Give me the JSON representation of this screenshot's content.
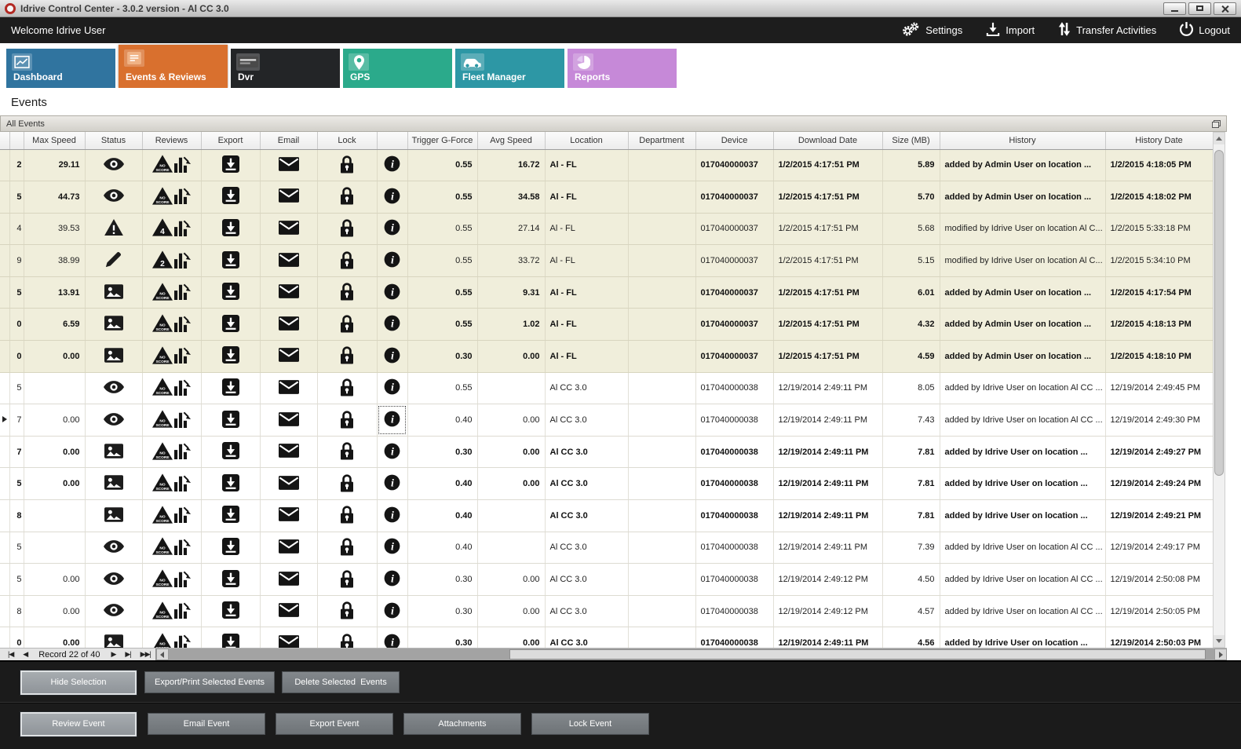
{
  "window": {
    "title": "Idrive Control Center - 3.0.2 version - Al CC 3.0"
  },
  "topbar": {
    "welcome": "Welcome Idrive User",
    "actions": [
      {
        "id": "settings",
        "label": "Settings",
        "icon": "gears-icon"
      },
      {
        "id": "import",
        "label": "Import",
        "icon": "import-icon"
      },
      {
        "id": "transfer-activities",
        "label": "Transfer Activities",
        "icon": "transfer-arrows-icon"
      },
      {
        "id": "logout",
        "label": "Logout",
        "icon": "power-icon"
      }
    ]
  },
  "tabs": [
    {
      "id": "dashboard",
      "label": "Dashboard",
      "color": "#30749f",
      "icon": "line-chart-icon",
      "active": false
    },
    {
      "id": "events-reviews",
      "label": "Events & Reviews",
      "color": "#d9702e",
      "icon": "event-list-icon",
      "active": true
    },
    {
      "id": "dvr",
      "label": "Dvr",
      "color": "#232527",
      "icon": "dvr-badge-icon",
      "active": false
    },
    {
      "id": "gps",
      "label": "GPS",
      "color": "#2baa8b",
      "icon": "map-pin-icon",
      "active": false
    },
    {
      "id": "fleet-manager",
      "label": "Fleet Manager",
      "color": "#2d97a5",
      "icon": "car-icon",
      "active": false
    },
    {
      "id": "reports",
      "label": "Reports",
      "color": "#c689d8",
      "icon": "pie-chart-icon",
      "active": false
    }
  ],
  "page": {
    "title": "Events",
    "panel_title": "All Events"
  },
  "colors": {
    "row_highlight": "#f0eedb",
    "topbar_bg": "#1d1d1d",
    "footer_bg": "#1b1b1b",
    "active_tab": "#d9702e"
  },
  "table": {
    "columns": [
      "",
      "",
      "Max Speed",
      "Status",
      "Reviews",
      "Export",
      "Email",
      "Lock",
      "",
      "Trigger G-Force",
      "Avg Speed",
      "Location",
      "Department",
      "Device",
      "Download Date",
      "Size (MB)",
      "History",
      "History Date"
    ],
    "rows": [
      {
        "id": "2",
        "max_speed": "29.11",
        "status": "eye",
        "score": "NO SCORE",
        "trigger_g_force": "0.55",
        "avg_speed": "16.72",
        "location": "Al - FL",
        "department": "",
        "device": "017040000037",
        "download_date": "1/2/2015 4:17:51 PM",
        "size_mb": "5.89",
        "history": "added by Admin User on location ...",
        "history_date": "1/2/2015 4:18:05 PM",
        "bold": true,
        "highlighted": true,
        "current": false
      },
      {
        "id": "5",
        "max_speed": "44.73",
        "status": "eye",
        "score": "NO SCORE",
        "trigger_g_force": "0.55",
        "avg_speed": "34.58",
        "location": "Al - FL",
        "department": "",
        "device": "017040000037",
        "download_date": "1/2/2015 4:17:51 PM",
        "size_mb": "5.70",
        "history": "added by Admin User on location ...",
        "history_date": "1/2/2015 4:18:02 PM",
        "bold": true,
        "highlighted": true,
        "current": false
      },
      {
        "id": "4",
        "max_speed": "39.53",
        "status": "warning",
        "score": "4",
        "trigger_g_force": "0.55",
        "avg_speed": "27.14",
        "location": "Al - FL",
        "department": "",
        "device": "017040000037",
        "download_date": "1/2/2015 4:17:51 PM",
        "size_mb": "5.68",
        "history": "modified by Idrive User on location Al C...",
        "history_date": "1/2/2015 5:33:18 PM",
        "bold": false,
        "highlighted": true,
        "current": false
      },
      {
        "id": "9",
        "max_speed": "38.99",
        "status": "pencil",
        "score": "2",
        "trigger_g_force": "0.55",
        "avg_speed": "33.72",
        "location": "Al - FL",
        "department": "",
        "device": "017040000037",
        "download_date": "1/2/2015 4:17:51 PM",
        "size_mb": "5.15",
        "history": "modified by Idrive User on location Al C...",
        "history_date": "1/2/2015 5:34:10 PM",
        "bold": false,
        "highlighted": true,
        "current": false
      },
      {
        "id": "5",
        "max_speed": "13.91",
        "status": "image",
        "score": "NO SCORE",
        "trigger_g_force": "0.55",
        "avg_speed": "9.31",
        "location": "Al - FL",
        "department": "",
        "device": "017040000037",
        "download_date": "1/2/2015 4:17:51 PM",
        "size_mb": "6.01",
        "history": "added by Admin User on location ...",
        "history_date": "1/2/2015 4:17:54 PM",
        "bold": true,
        "highlighted": true,
        "current": false
      },
      {
        "id": "0",
        "max_speed": "6.59",
        "status": "image",
        "score": "NO SCORE",
        "trigger_g_force": "0.55",
        "avg_speed": "1.02",
        "location": "Al - FL",
        "department": "",
        "device": "017040000037",
        "download_date": "1/2/2015 4:17:51 PM",
        "size_mb": "4.32",
        "history": "added by Admin User on location ...",
        "history_date": "1/2/2015 4:18:13 PM",
        "bold": true,
        "highlighted": true,
        "current": false
      },
      {
        "id": "0",
        "max_speed": "0.00",
        "status": "image",
        "score": "NO SCORE",
        "trigger_g_force": "0.30",
        "avg_speed": "0.00",
        "location": "Al - FL",
        "department": "",
        "device": "017040000037",
        "download_date": "1/2/2015 4:17:51 PM",
        "size_mb": "4.59",
        "history": "added by Admin User on location ...",
        "history_date": "1/2/2015 4:18:10 PM",
        "bold": true,
        "highlighted": true,
        "current": false
      },
      {
        "id": "5",
        "max_speed": "",
        "status": "eye",
        "score": "NO SCORE",
        "trigger_g_force": "0.55",
        "avg_speed": "",
        "location": "Al CC 3.0",
        "department": "",
        "device": "017040000038",
        "download_date": "12/19/2014 2:49:11 PM",
        "size_mb": "8.05",
        "history": "added by Idrive User on location Al CC ...",
        "history_date": "12/19/2014 2:49:45 PM",
        "bold": false,
        "highlighted": false,
        "current": false
      },
      {
        "id": "7",
        "max_speed": "0.00",
        "status": "eye",
        "score": "NO SCORE",
        "trigger_g_force": "0.40",
        "avg_speed": "0.00",
        "location": "Al CC 3.0",
        "department": "",
        "device": "017040000038",
        "download_date": "12/19/2014 2:49:11 PM",
        "size_mb": "7.43",
        "history": "added by Idrive User on location Al CC ...",
        "history_date": "12/19/2014 2:49:30 PM",
        "bold": false,
        "highlighted": false,
        "current": true
      },
      {
        "id": "7",
        "max_speed": "0.00",
        "status": "image",
        "score": "NO SCORE",
        "trigger_g_force": "0.30",
        "avg_speed": "0.00",
        "location": "Al CC 3.0",
        "department": "",
        "device": "017040000038",
        "download_date": "12/19/2014 2:49:11 PM",
        "size_mb": "7.81",
        "history": "added by Idrive User on location ...",
        "history_date": "12/19/2014 2:49:27 PM",
        "bold": true,
        "highlighted": false,
        "current": false
      },
      {
        "id": "5",
        "max_speed": "0.00",
        "status": "image",
        "score": "NO SCORE",
        "trigger_g_force": "0.40",
        "avg_speed": "0.00",
        "location": "Al CC 3.0",
        "department": "",
        "device": "017040000038",
        "download_date": "12/19/2014 2:49:11 PM",
        "size_mb": "7.81",
        "history": "added by Idrive User on location ...",
        "history_date": "12/19/2014 2:49:24 PM",
        "bold": true,
        "highlighted": false,
        "current": false
      },
      {
        "id": "8",
        "max_speed": "",
        "status": "image",
        "score": "NO SCORE",
        "trigger_g_force": "0.40",
        "avg_speed": "",
        "location": "Al CC 3.0",
        "department": "",
        "device": "017040000038",
        "download_date": "12/19/2014 2:49:11 PM",
        "size_mb": "7.81",
        "history": "added by Idrive User on location ...",
        "history_date": "12/19/2014 2:49:21 PM",
        "bold": true,
        "highlighted": false,
        "current": false
      },
      {
        "id": "5",
        "max_speed": "",
        "status": "eye",
        "score": "NO SCORE",
        "trigger_g_force": "0.40",
        "avg_speed": "",
        "location": "Al CC 3.0",
        "department": "",
        "device": "017040000038",
        "download_date": "12/19/2014 2:49:11 PM",
        "size_mb": "7.39",
        "history": "added by Idrive User on location Al CC ...",
        "history_date": "12/19/2014 2:49:17 PM",
        "bold": false,
        "highlighted": false,
        "current": false
      },
      {
        "id": "5",
        "max_speed": "0.00",
        "status": "eye",
        "score": "NO SCORE",
        "trigger_g_force": "0.30",
        "avg_speed": "0.00",
        "location": "Al CC 3.0",
        "department": "",
        "device": "017040000038",
        "download_date": "12/19/2014 2:49:12 PM",
        "size_mb": "4.50",
        "history": "added by Idrive User on location Al CC ...",
        "history_date": "12/19/2014 2:50:08 PM",
        "bold": false,
        "highlighted": false,
        "current": false
      },
      {
        "id": "8",
        "max_speed": "0.00",
        "status": "eye",
        "score": "NO SCORE",
        "trigger_g_force": "0.30",
        "avg_speed": "0.00",
        "location": "Al CC 3.0",
        "department": "",
        "device": "017040000038",
        "download_date": "12/19/2014 2:49:12 PM",
        "size_mb": "4.57",
        "history": "added by Idrive User on location Al CC ...",
        "history_date": "12/19/2014 2:50:05 PM",
        "bold": false,
        "highlighted": false,
        "current": false
      },
      {
        "id": "0",
        "max_speed": "0.00",
        "status": "image",
        "score": "NO SCORE",
        "trigger_g_force": "0.30",
        "avg_speed": "0.00",
        "location": "Al CC 3.0",
        "department": "",
        "device": "017040000038",
        "download_date": "12/19/2014 2:49:11 PM",
        "size_mb": "4.56",
        "history": "added by Idrive User on location ...",
        "history_date": "12/19/2014 2:50:03 PM",
        "bold": true,
        "highlighted": false,
        "current": false
      }
    ]
  },
  "nav": {
    "first_icon": "|◀",
    "prev_icon": "◀",
    "label": "Record 22 of 40",
    "next_icon": "▶",
    "last_icon": "▶|",
    "extra_icon": "▶▶|"
  },
  "footer": {
    "selection_buttons": [
      {
        "label": "Hide Selection",
        "focused": true
      },
      {
        "label": "Export/Print Selected Events",
        "focused": false
      },
      {
        "label": "Delete Selected  Events",
        "focused": false
      }
    ],
    "event_buttons": [
      {
        "label": "Review Event",
        "focused": true
      },
      {
        "label": "Email Event",
        "focused": false
      },
      {
        "label": "Export Event",
        "focused": false
      },
      {
        "label": "Attachments",
        "focused": false
      },
      {
        "label": "Lock Event",
        "focused": false
      }
    ]
  }
}
